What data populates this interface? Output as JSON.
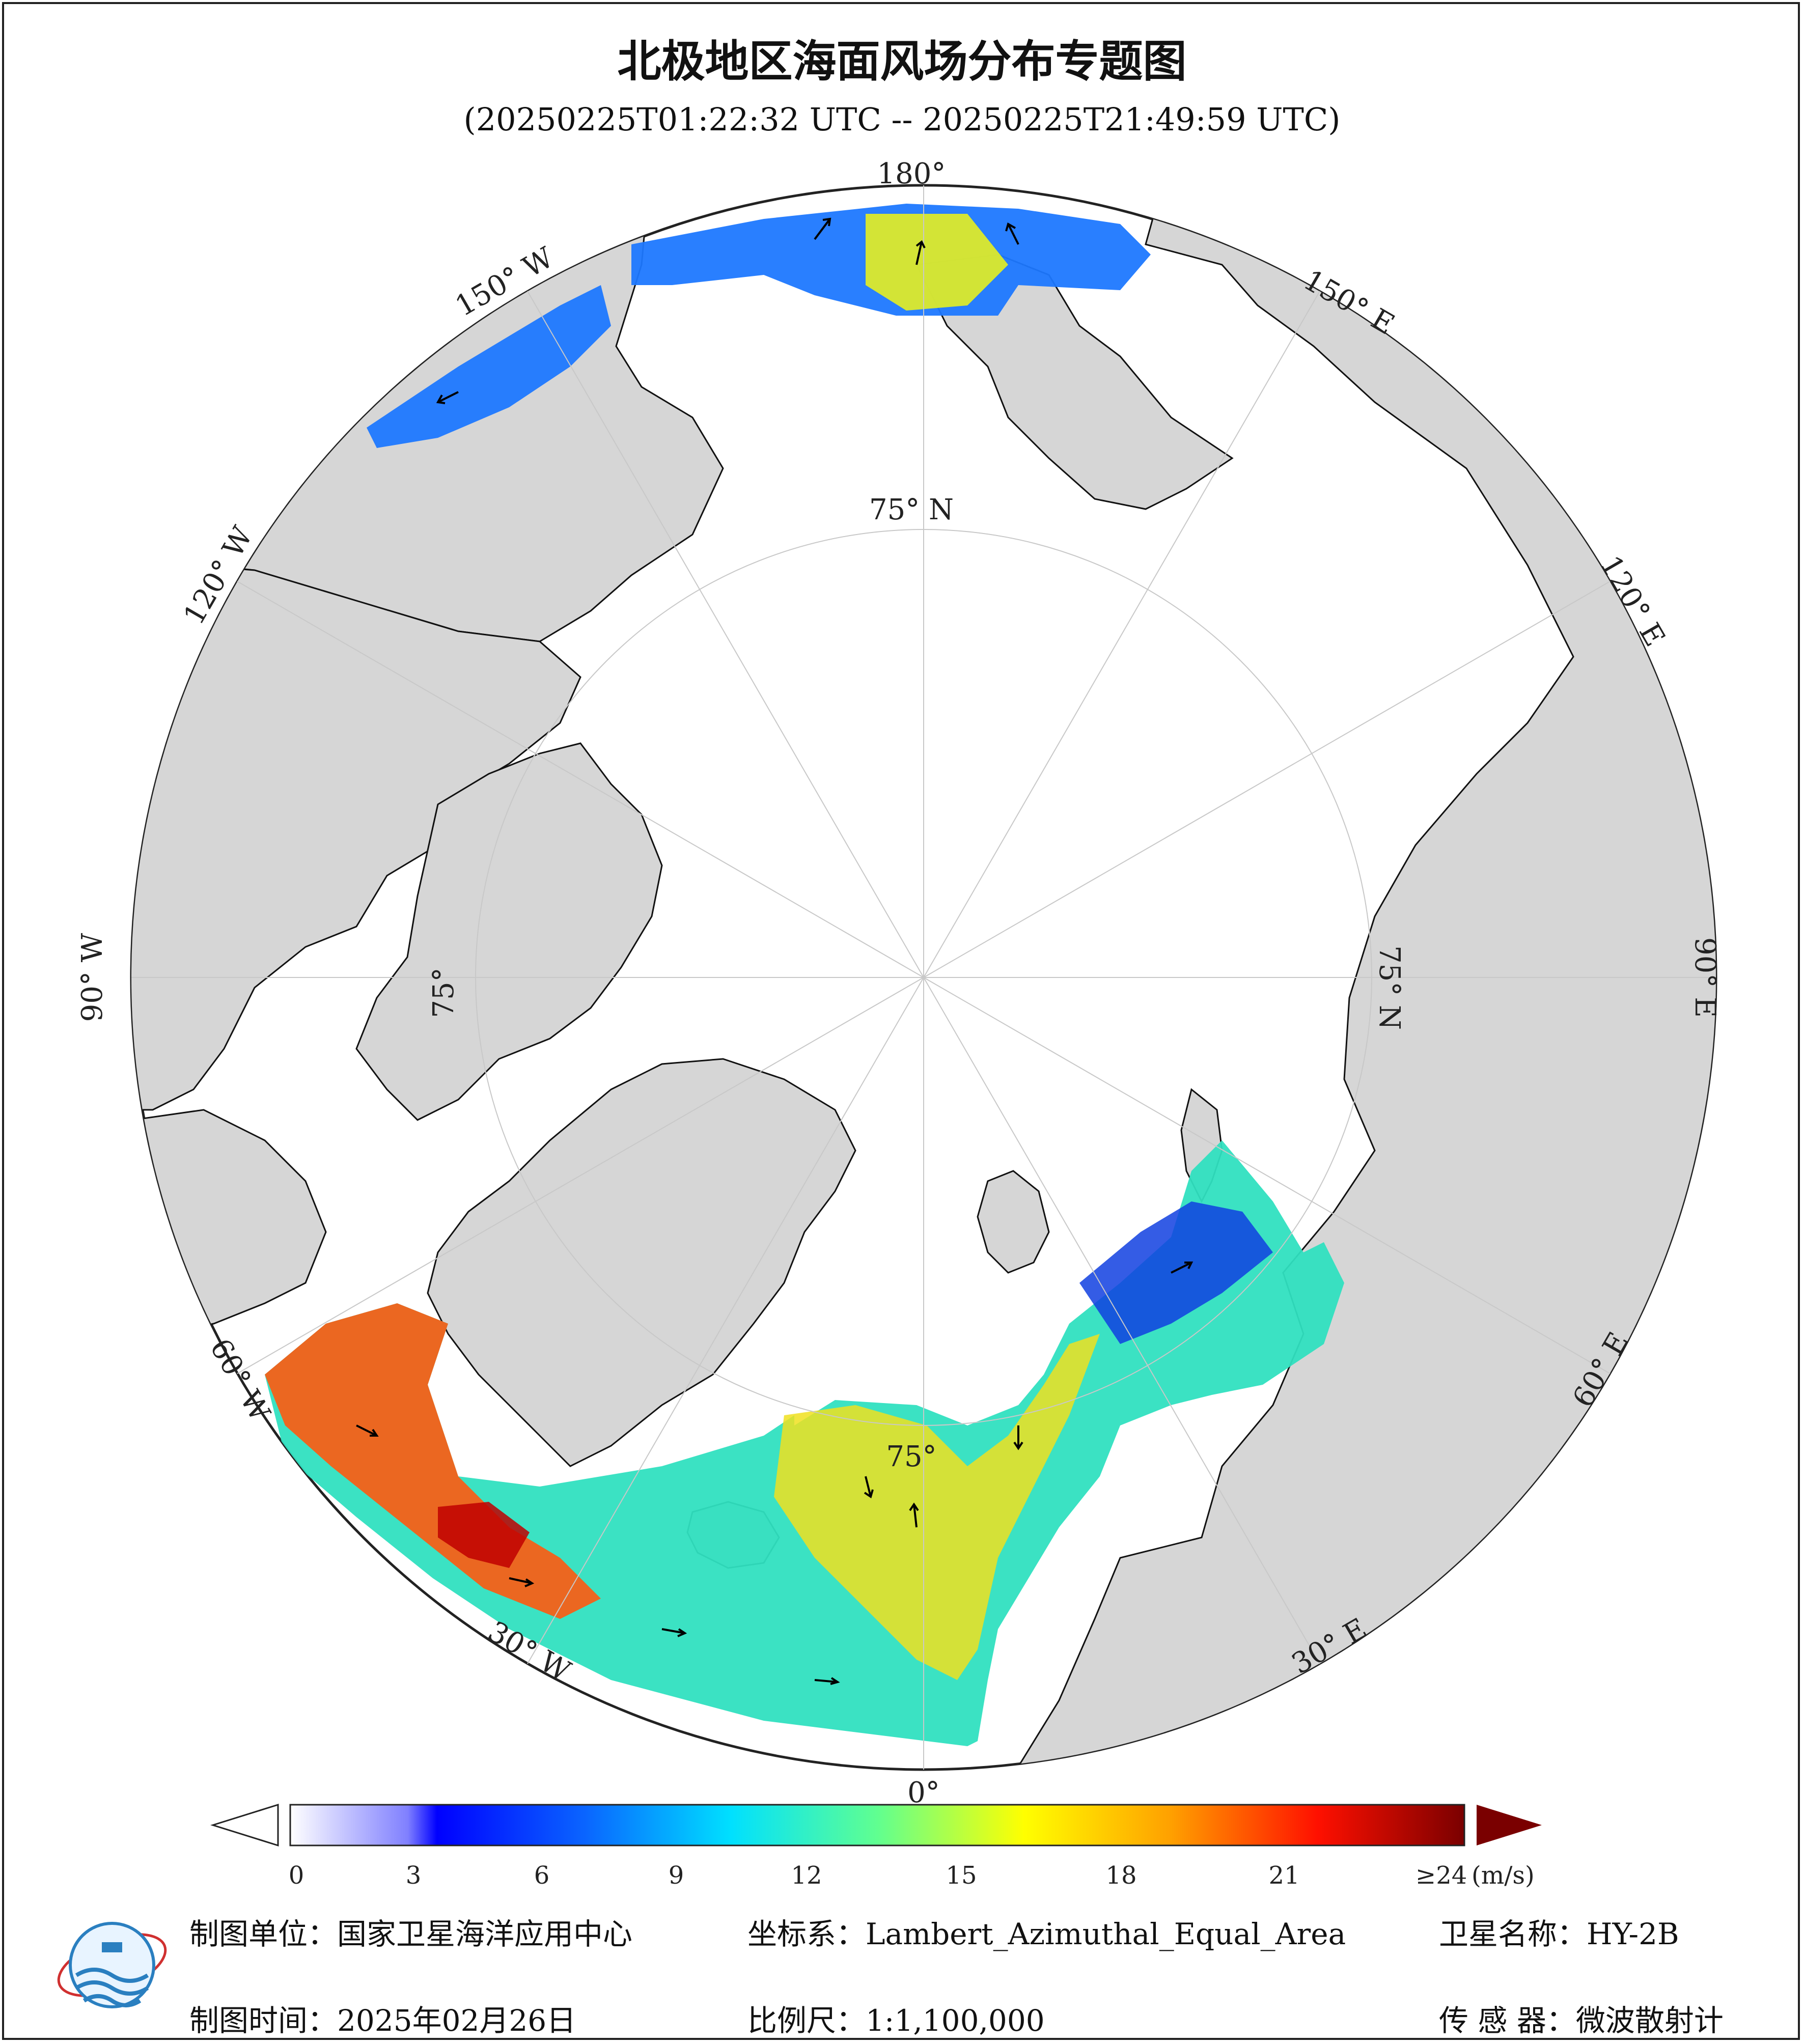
{
  "title": "北极地区海面风场分布专题图",
  "subtitle": "(20250225T01:22:32 UTC -- 20250225T21:49:59 UTC)",
  "map": {
    "projection": "north-polar",
    "longitude_labels": [
      "180°",
      "150° E",
      "120° E",
      "90° E",
      "60° E",
      "30° E",
      "0°",
      "30° W",
      "60° W",
      "90° W",
      "120° W",
      "150° W"
    ],
    "latitude_labels": [
      "75° N",
      "75° N",
      "75°",
      "75°"
    ],
    "colors": {
      "land": "#d6d6d6",
      "ocean": "#ffffff",
      "coast": "#111111",
      "grid": "#c8c8c8"
    }
  },
  "colorbar": {
    "ticks": [
      "0",
      "3",
      "6",
      "9",
      "12",
      "15",
      "18",
      "21"
    ],
    "max_label": "≥24",
    "unit": "(m/s)",
    "range": [
      0,
      24
    ],
    "colors": [
      "#ffffff",
      "#e6e6ff",
      "#c6c6ff",
      "#a0a0ff",
      "#7070ff",
      "#3c3cff",
      "#0000ff",
      "#0a3cff",
      "#0a64ff",
      "#1e90ff",
      "#28b4ff",
      "#14d2ff",
      "#00ffff",
      "#40ffc0",
      "#80ff80",
      "#c0ff40",
      "#ffff00",
      "#ffd200",
      "#ffa800",
      "#ff7800",
      "#ff4800",
      "#ff0000",
      "#d00000",
      "#a00000",
      "#7a0000"
    ]
  },
  "footer": {
    "unit": "制图单位：国家卫星海洋应用中心",
    "coord": "坐标系：Lambert_Azimuthal_Equal_Area",
    "satellite": "卫星名称：HY-2B",
    "time": "制图时间：2025年02月26日",
    "scale": "比例尺：1:1,100,000",
    "sensor": "传 感 器：微波散射计"
  }
}
